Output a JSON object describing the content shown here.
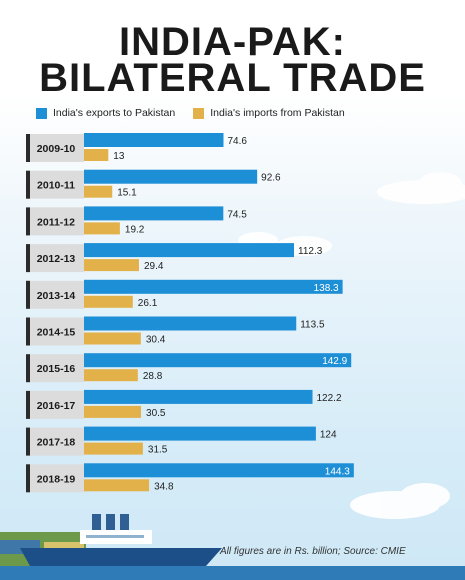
{
  "title_line1": "INDIA-PAK:",
  "title_line2": "BILATERAL TRADE",
  "footnote": "All figures are in Rs. billion; Source: CMIE",
  "colors": {
    "exports": "#1d8fd6",
    "imports": "#e3b14a",
    "label_bg": "#dcdcdc",
    "label_accent": "#2b2b2b"
  },
  "chart_data": {
    "type": "bar",
    "orientation": "horizontal",
    "categories": [
      "2009-10",
      "2010-11",
      "2011-12",
      "2012-13",
      "2013-14",
      "2014-15",
      "2015-16",
      "2016-17",
      "2017-18",
      "2018-19"
    ],
    "series": [
      {
        "name": "India's exports to Pakistan",
        "values": [
          74.6,
          92.6,
          74.5,
          112.3,
          138.3,
          113.5,
          142.9,
          122.2,
          124,
          144.3
        ]
      },
      {
        "name": "India's imports from Pakistan",
        "values": [
          13,
          15.1,
          19.2,
          29.4,
          26.1,
          30.4,
          28.8,
          30.5,
          31.5,
          34.8
        ]
      }
    ],
    "value_labels": {
      "exports": [
        "74.6",
        "92.6",
        "74.5",
        "112.3",
        "138.3",
        "113.5",
        "142.9",
        "122.2",
        "124",
        "144.3"
      ],
      "imports": [
        "13",
        "15.1",
        "19.2",
        "29.4",
        "26.1",
        "30.4",
        "28.8",
        "30.5",
        "31.5",
        "34.8"
      ]
    },
    "label_inside_threshold": 130,
    "legend": "top-left",
    "grid": false
  }
}
